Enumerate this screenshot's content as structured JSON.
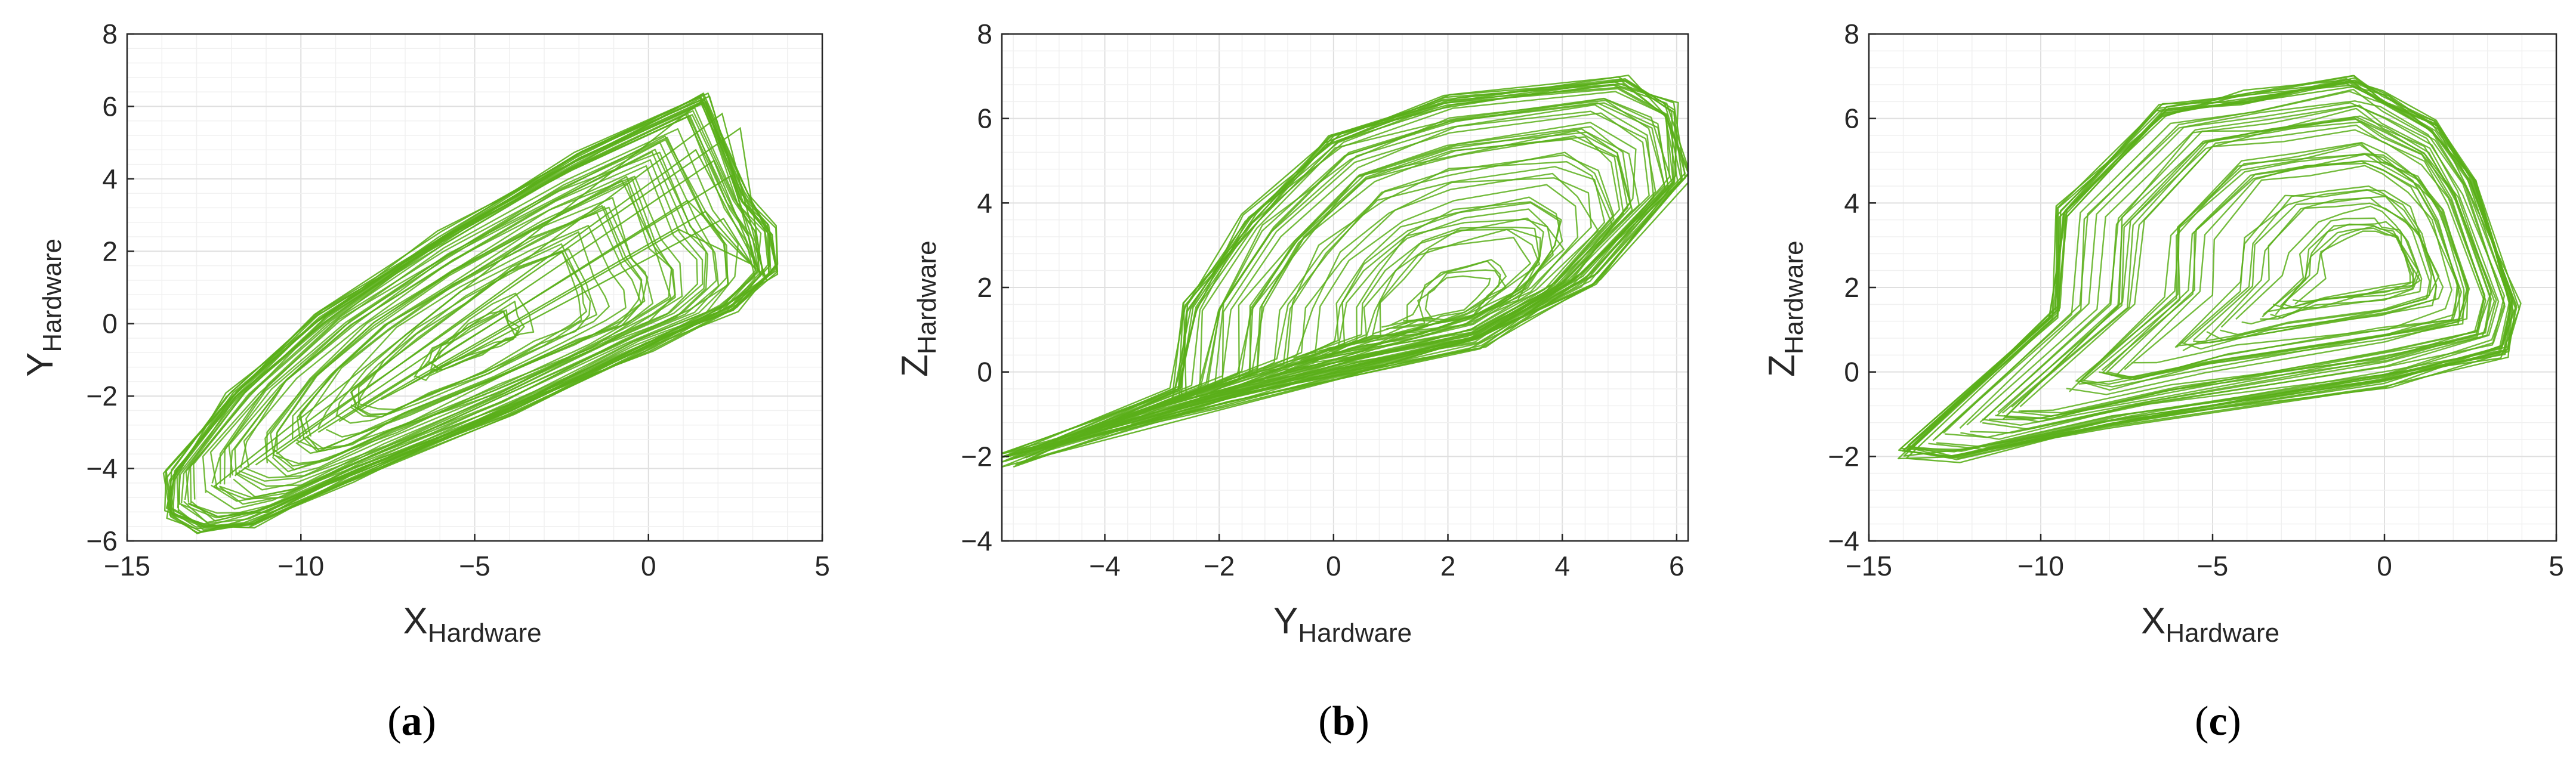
{
  "colors": {
    "series": "#5aaf1a",
    "axis": "#262626",
    "grid_major": "#dfdfdf",
    "grid_minor": "#f0f0f0"
  },
  "chart_data": [
    {
      "type": "line",
      "subtype": "phase-portrait",
      "caption": "(a)",
      "caption_letter": "a",
      "title": "",
      "xlabel": "X",
      "xlabel_sub": "Hardware",
      "ylabel": "Y",
      "ylabel_sub": "Hardware",
      "xlim": [
        -15,
        5
      ],
      "ylim": [
        -6,
        8
      ],
      "xticks": [
        "−15",
        "−10",
        "−5",
        "0",
        "5"
      ],
      "yticks": [
        "−6",
        "−4",
        "−2",
        "0",
        "2",
        "4",
        "6",
        "8"
      ],
      "grid": "on (major + minor)",
      "trace_envelope": [
        [
          -13.8,
          -5.2
        ],
        [
          -12.9,
          -5.7
        ],
        [
          -11.5,
          -5.5
        ],
        [
          -8.5,
          -4.2
        ],
        [
          -4,
          -2.4
        ],
        [
          0,
          -0.6
        ],
        [
          2.5,
          0.5
        ],
        [
          3.6,
          1.5
        ],
        [
          3.5,
          2.6
        ],
        [
          2.8,
          3.5
        ],
        [
          1.6,
          6.2
        ],
        [
          -2,
          4.6
        ],
        [
          -6,
          2.4
        ],
        [
          -9.5,
          0.2
        ],
        [
          -12,
          -2
        ],
        [
          -13.8,
          -4.2
        ]
      ],
      "peaks_y": [
        6.2,
        5.8,
        5.4,
        4.8,
        4.5,
        4.1,
        3.4,
        3.1,
        2.9,
        2.6
      ]
    },
    {
      "type": "line",
      "subtype": "phase-portrait",
      "caption": "(b)",
      "caption_letter": "b",
      "title": "",
      "xlabel": "Y",
      "xlabel_sub": "Hardware",
      "ylabel": "Z",
      "ylabel_sub": "Hardware",
      "xlim": [
        -5.8,
        6.2
      ],
      "ylim": [
        -4,
        8
      ],
      "xticks": [
        "−4",
        "−2",
        "0",
        "2",
        "4",
        "6"
      ],
      "yticks": [
        "−4",
        "−2",
        "0",
        "2",
        "4",
        "6",
        "8"
      ],
      "grid": "on (major + minor)",
      "trace_envelope": [
        [
          -5.7,
          -2.1
        ],
        [
          -2,
          -0.7
        ],
        [
          0,
          -0.1
        ],
        [
          2.5,
          0.7
        ],
        [
          4.5,
          2.2
        ],
        [
          6.1,
          4.6
        ],
        [
          5.9,
          6.2
        ],
        [
          5,
          6.9
        ],
        [
          2,
          6.4
        ],
        [
          0,
          5.5
        ],
        [
          -1.5,
          3.6
        ],
        [
          -2.5,
          1.5
        ],
        [
          -2.7,
          -0.5
        ]
      ],
      "inner_center": [
        2.3,
        1.6
      ]
    },
    {
      "type": "line",
      "subtype": "phase-portrait",
      "caption": "(c)",
      "caption_letter": "c",
      "title": "",
      "xlabel": "X",
      "xlabel_sub": "Hardware",
      "ylabel": "Z",
      "ylabel_sub": "Hardware",
      "xlim": [
        -15,
        5
      ],
      "ylim": [
        -4,
        8
      ],
      "xticks": [
        "−15",
        "−10",
        "−5",
        "0",
        "5"
      ],
      "yticks": [
        "−4",
        "−2",
        "0",
        "2",
        "4",
        "6",
        "8"
      ],
      "grid": "on (major + minor)",
      "trace_envelope": [
        [
          -14,
          -1.9
        ],
        [
          -12.5,
          -2
        ],
        [
          -8,
          -1.2
        ],
        [
          0,
          -0.2
        ],
        [
          3.5,
          0.5
        ],
        [
          3.8,
          1.6
        ],
        [
          2.5,
          4.5
        ],
        [
          1.5,
          5.8
        ],
        [
          0,
          6.5
        ],
        [
          -1,
          6.9
        ],
        [
          -4,
          6.5
        ],
        [
          -6.5,
          6.2
        ],
        [
          -9.4,
          3.8
        ],
        [
          -9.6,
          1.4
        ]
      ],
      "inner_center": [
        0,
        2.5
      ]
    }
  ]
}
